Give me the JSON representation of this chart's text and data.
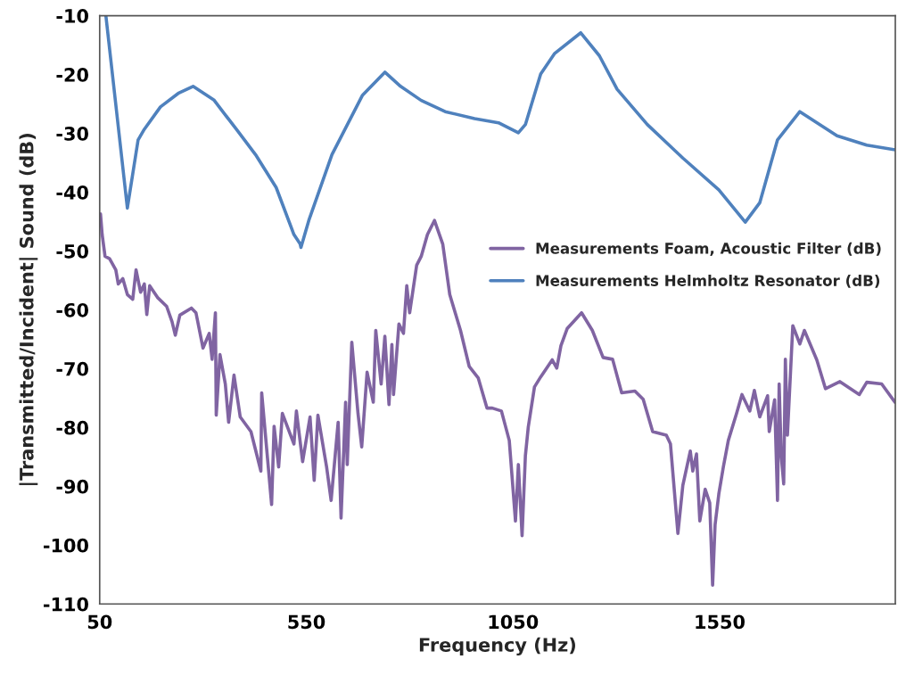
{
  "chart_data": {
    "type": "line",
    "xlabel": "Frequency (Hz)",
    "ylabel": "|Transmitted/Incident| Sound (dB)",
    "xlim": [
      50,
      1975
    ],
    "xticks": [
      50,
      550,
      1050,
      1550
    ],
    "ylim": [
      -110,
      -10
    ],
    "yticks": [
      -110,
      -100,
      -90,
      -80,
      -70,
      -60,
      -50,
      -40,
      -30,
      -20,
      -10
    ],
    "grid": false,
    "legend": "right",
    "marker": "none",
    "line_style": "solid",
    "series": [
      {
        "name": "Measurements Foam, Acoustic Filter (dB)",
        "color": "#8064a2",
        "x": [
          52,
          56,
          63,
          74,
          89,
          95,
          106,
          117,
          130,
          138,
          149,
          158,
          164,
          171,
          190,
          212,
          225,
          233,
          244,
          272,
          283,
          300,
          315,
          322,
          330,
          332,
          341,
          354,
          362,
          375,
          390,
          416,
          440,
          442,
          466,
          472,
          483,
          492,
          520,
          526,
          541,
          559,
          569,
          578,
          599,
          610,
          627,
          634,
          645,
          649,
          660,
          675,
          684,
          697,
          712,
          718,
          731,
          740,
          750,
          757,
          761,
          774,
          785,
          793,
          800,
          817,
          828,
          843,
          860,
          880,
          897,
          923,
          944,
          966,
          987,
          1000,
          1022,
          1041,
          1056,
          1063,
          1072,
          1080,
          1087,
          1102,
          1117,
          1145,
          1156,
          1166,
          1181,
          1216,
          1242,
          1268,
          1291,
          1313,
          1345,
          1365,
          1388,
          1421,
          1431,
          1449,
          1461,
          1479,
          1485,
          1494,
          1502,
          1515,
          1526,
          1533,
          1539,
          1548,
          1559,
          1571,
          1591,
          1604,
          1623,
          1634,
          1647,
          1666,
          1670,
          1683,
          1690,
          1694,
          1699,
          1705,
          1709,
          1714,
          1727,
          1744,
          1755,
          1785,
          1806,
          1841,
          1888,
          1906,
          1942,
          1974
        ],
        "values": [
          -43.7,
          -47.2,
          -50.9,
          -51.3,
          -53.2,
          -55.6,
          -54.7,
          -57.4,
          -58.2,
          -53.2,
          -57.0,
          -55.6,
          -60.8,
          -55.9,
          -57.9,
          -59.4,
          -62.0,
          -64.3,
          -60.9,
          -59.7,
          -60.5,
          -66.5,
          -64.0,
          -68.4,
          -60.5,
          -77.9,
          -67.6,
          -72.6,
          -79.1,
          -71.1,
          -78.2,
          -80.7,
          -87.4,
          -74.1,
          -93.1,
          -79.8,
          -86.7,
          -77.6,
          -82.8,
          -77.2,
          -85.8,
          -78.2,
          -89.0,
          -77.9,
          -86.7,
          -92.4,
          -79.1,
          -95.4,
          -75.7,
          -86.3,
          -65.5,
          -77.6,
          -83.3,
          -70.6,
          -75.7,
          -63.5,
          -72.6,
          -64.5,
          -76.1,
          -65.9,
          -74.4,
          -62.4,
          -64.0,
          -55.9,
          -60.5,
          -52.4,
          -50.9,
          -47.2,
          -44.8,
          -48.8,
          -57.4,
          -63.5,
          -69.6,
          -71.6,
          -76.7,
          -76.7,
          -77.2,
          -82.2,
          -95.9,
          -86.3,
          -98.4,
          -84.8,
          -79.9,
          -73.1,
          -71.4,
          -68.5,
          -69.9,
          -66.1,
          -63.2,
          -60.5,
          -63.5,
          -68.1,
          -68.4,
          -74.1,
          -73.8,
          -75.2,
          -80.7,
          -81.3,
          -82.8,
          -98.0,
          -89.8,
          -84.0,
          -87.4,
          -84.5,
          -95.9,
          -90.5,
          -92.8,
          -106.8,
          -96.5,
          -91.3,
          -86.7,
          -82.2,
          -77.6,
          -74.4,
          -77.2,
          -73.7,
          -78.2,
          -74.6,
          -80.7,
          -75.3,
          -92.4,
          -72.6,
          -84.8,
          -89.6,
          -68.4,
          -81.3,
          -62.7,
          -65.8,
          -63.5,
          -68.5,
          -73.4,
          -72.2,
          -74.4,
          -72.3,
          -72.6,
          -75.7
        ]
      },
      {
        "name": "Measurements Helmholtz Resonator (dB)",
        "color": "#4f81bd",
        "x": [
          65,
          117,
          143,
          158,
          197,
          240,
          276,
          326,
          384,
          427,
          477,
          520,
          535,
          537,
          556,
          612,
          686,
          740,
          778,
          828,
          886,
          957,
          1015,
          1063,
          1080,
          1117,
          1151,
          1214,
          1259,
          1302,
          1375,
          1461,
          1548,
          1612,
          1647,
          1690,
          1744,
          1834,
          1906,
          1975
        ],
        "values": [
          -10,
          -42.7,
          -31.1,
          -29.3,
          -25.5,
          -23.2,
          -22.0,
          -24.3,
          -29.6,
          -33.6,
          -39.2,
          -47.2,
          -48.8,
          -49.4,
          -44.8,
          -33.6,
          -23.5,
          -19.6,
          -22.0,
          -24.4,
          -26.3,
          -27.5,
          -28.2,
          -29.9,
          -28.5,
          -19.9,
          -16.4,
          -12.9,
          -16.8,
          -22.5,
          -28.5,
          -34.2,
          -39.6,
          -45.1,
          -41.8,
          -31.1,
          -26.3,
          -30.4,
          -32.0,
          -32.8
        ]
      }
    ]
  }
}
